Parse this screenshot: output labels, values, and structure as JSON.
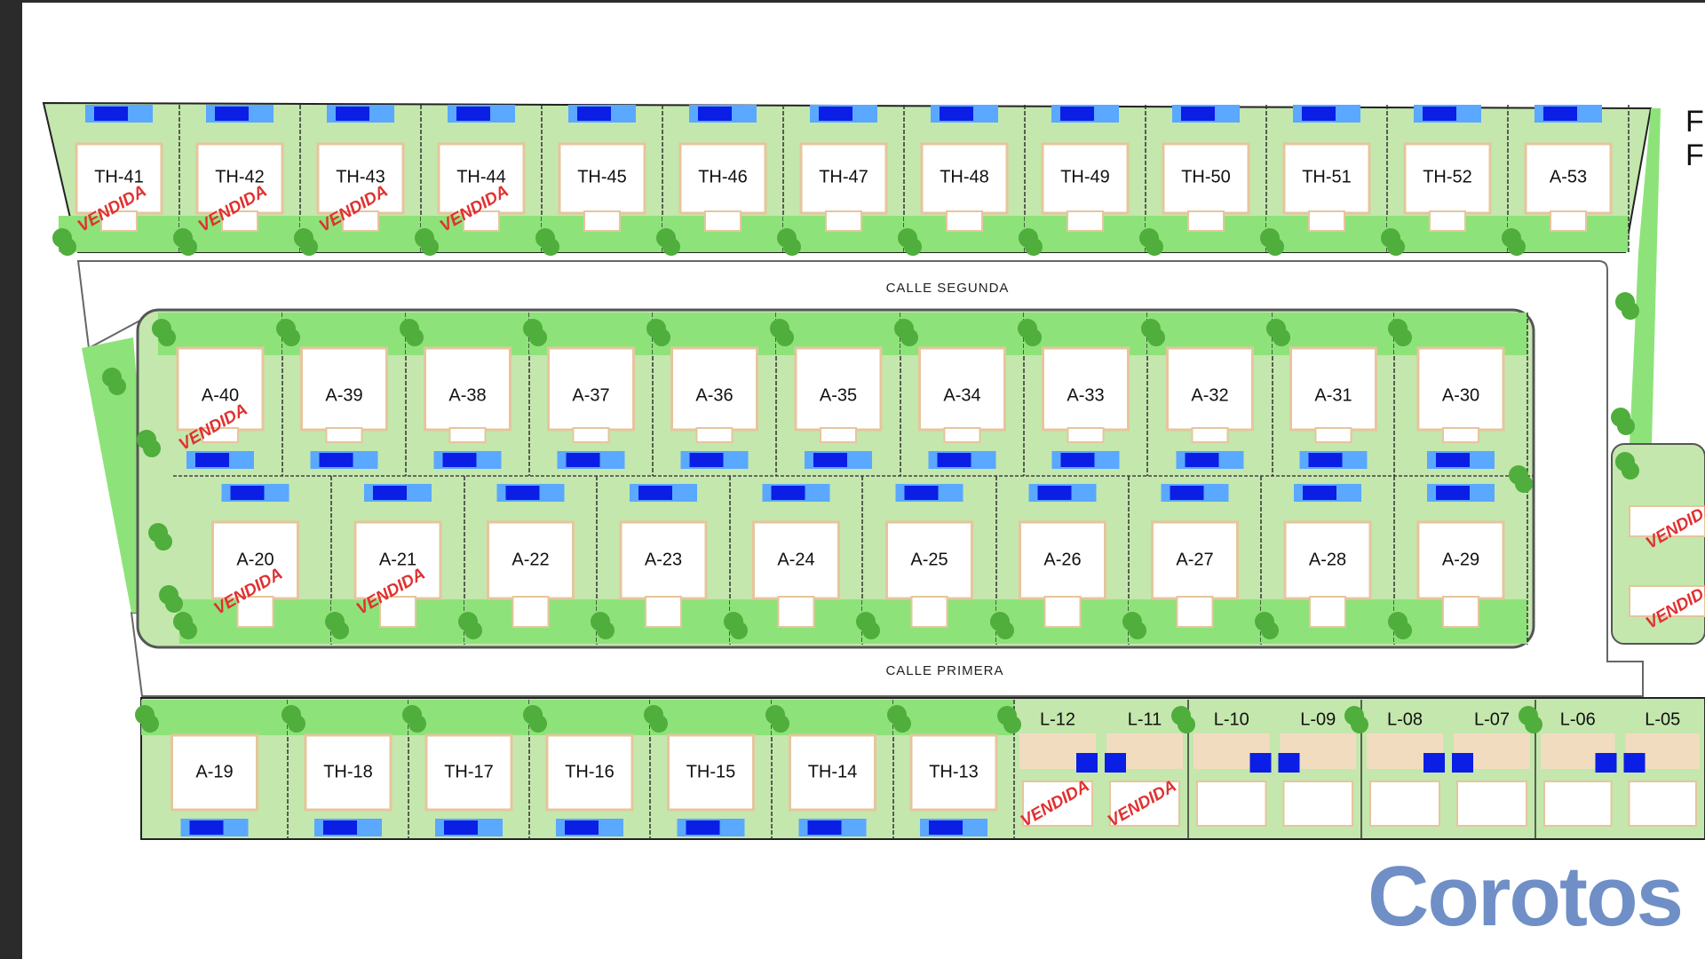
{
  "streets": {
    "upper": "CALLE SEGUNDA",
    "lower": "CALLE PRIMERA"
  },
  "sold_label": "VENDIDA",
  "rows": {
    "top": [
      {
        "id": "TH-41",
        "sold": true
      },
      {
        "id": "TH-42",
        "sold": true
      },
      {
        "id": "TH-43",
        "sold": true
      },
      {
        "id": "TH-44",
        "sold": true
      },
      {
        "id": "TH-45",
        "sold": false
      },
      {
        "id": "TH-46",
        "sold": false
      },
      {
        "id": "TH-47",
        "sold": false
      },
      {
        "id": "TH-48",
        "sold": false
      },
      {
        "id": "TH-49",
        "sold": false
      },
      {
        "id": "TH-50",
        "sold": false
      },
      {
        "id": "TH-51",
        "sold": false
      },
      {
        "id": "TH-52",
        "sold": false
      },
      {
        "id": "A-53",
        "sold": false
      }
    ],
    "middle_upper": [
      {
        "id": "A-40",
        "sold": true
      },
      {
        "id": "A-39",
        "sold": false
      },
      {
        "id": "A-38",
        "sold": false
      },
      {
        "id": "A-37",
        "sold": false
      },
      {
        "id": "A-36",
        "sold": false
      },
      {
        "id": "A-35",
        "sold": false
      },
      {
        "id": "A-34",
        "sold": false
      },
      {
        "id": "A-33",
        "sold": false
      },
      {
        "id": "A-32",
        "sold": false
      },
      {
        "id": "A-31",
        "sold": false
      },
      {
        "id": "A-30",
        "sold": false
      }
    ],
    "middle_lower": [
      {
        "id": "A-20",
        "sold": true
      },
      {
        "id": "A-21",
        "sold": true
      },
      {
        "id": "A-22",
        "sold": false
      },
      {
        "id": "A-23",
        "sold": false
      },
      {
        "id": "A-24",
        "sold": false
      },
      {
        "id": "A-25",
        "sold": false
      },
      {
        "id": "A-26",
        "sold": false
      },
      {
        "id": "A-27",
        "sold": false
      },
      {
        "id": "A-28",
        "sold": false
      },
      {
        "id": "A-29",
        "sold": false
      }
    ],
    "bottom": [
      {
        "id": "A-19",
        "sold": false
      },
      {
        "id": "TH-18",
        "sold": false
      },
      {
        "id": "TH-17",
        "sold": false
      },
      {
        "id": "TH-16",
        "sold": false
      },
      {
        "id": "TH-15",
        "sold": false
      },
      {
        "id": "TH-14",
        "sold": false
      },
      {
        "id": "TH-13",
        "sold": false
      }
    ],
    "bottom_lots": [
      {
        "id": "L-12",
        "sold": true
      },
      {
        "id": "L-11",
        "sold": true
      },
      {
        "id": "L-10",
        "sold": false
      },
      {
        "id": "L-09",
        "sold": false
      },
      {
        "id": "L-08",
        "sold": false
      },
      {
        "id": "L-07",
        "sold": false
      },
      {
        "id": "L-06",
        "sold": false
      },
      {
        "id": "L-05",
        "sold": false
      }
    ],
    "right_partial_sold": [
      true,
      true
    ]
  },
  "side_text": [
    "F",
    "F"
  ],
  "logo": "Corotos",
  "colors": {
    "lot": "#c4e7ad",
    "garden": "#8ee27a",
    "tree": "#4fae3c",
    "house_border": "#e6c59c",
    "pool": "#0a1ee6",
    "pool_edge": "#5aa8ff",
    "sold": "#e03030",
    "logo": "#6f8fc6"
  }
}
